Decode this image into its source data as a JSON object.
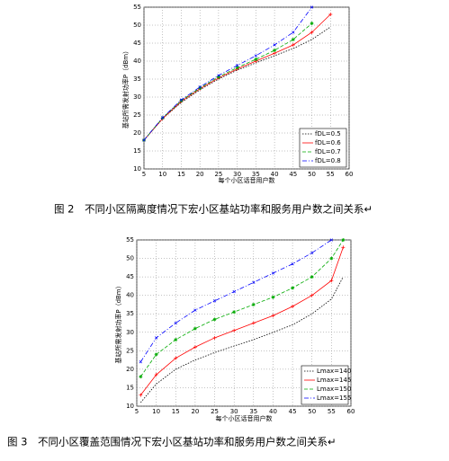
{
  "chart_data": [
    {
      "type": "line",
      "caption": "图 2　不同小区隔离度情况下宏小区基站功率和服务用户数之间关系↵",
      "xlabel": "每个小区话音用户数",
      "ylabel": "基站所需发射功率P（dBm）",
      "x": [
        5,
        10,
        15,
        20,
        25,
        30,
        35,
        40,
        45,
        50,
        55
      ],
      "xlim": [
        5,
        60
      ],
      "xticks": [
        5,
        10,
        15,
        20,
        25,
        30,
        35,
        40,
        45,
        50,
        55,
        60
      ],
      "ylim": [
        10,
        55
      ],
      "yticks": [
        10,
        15,
        20,
        25,
        30,
        35,
        40,
        45,
        50,
        55
      ],
      "grid": true,
      "legend": "lower right",
      "series": [
        {
          "name": "fDL=0.5",
          "color": "#000000",
          "values": [
            18,
            24,
            28.5,
            32,
            35,
            37.5,
            39.5,
            41.5,
            43.5,
            46,
            49.5
          ]
        },
        {
          "name": "fDL=0.6",
          "color": "#ff0000",
          "values": [
            18,
            24,
            28.8,
            32.3,
            35.3,
            37.8,
            40,
            42.2,
            44.5,
            48,
            53
          ]
        },
        {
          "name": "fDL=0.7",
          "color": "#00aa00",
          "values": [
            18,
            24.2,
            29,
            32.5,
            35.6,
            38.2,
            40.5,
            43,
            46,
            50.5,
            null
          ]
        },
        {
          "name": "fDL=0.8",
          "color": "#0000ff",
          "values": [
            18,
            24.3,
            29.2,
            32.8,
            36,
            38.8,
            41.5,
            44.5,
            48,
            55,
            null
          ]
        }
      ]
    },
    {
      "type": "line",
      "caption": "图 3　不同小区覆盖范围情况下宏小区基站功率和服务用户数之间关系↵",
      "xlabel": "每个小区话音用户数",
      "ylabel": "基站所需发射功率P（dBm）",
      "x": [
        6,
        10,
        15,
        20,
        25,
        30,
        35,
        40,
        45,
        50,
        55,
        58
      ],
      "xlim": [
        5,
        60
      ],
      "xticks": [
        5,
        10,
        15,
        20,
        25,
        30,
        35,
        40,
        45,
        50,
        55,
        60
      ],
      "ylim": [
        10,
        55
      ],
      "yticks": [
        10,
        15,
        20,
        25,
        30,
        35,
        40,
        45,
        50,
        55
      ],
      "grid": true,
      "legend": "lower right",
      "series": [
        {
          "name": "Lmax=140",
          "color": "#000000",
          "values": [
            11,
            16,
            20,
            22.5,
            24.5,
            26.3,
            28,
            30,
            32,
            35,
            39,
            45
          ]
        },
        {
          "name": "Lmax=145",
          "color": "#ff0000",
          "values": [
            13,
            18.5,
            23,
            26,
            28.5,
            30.5,
            32.5,
            34.5,
            37,
            40,
            44,
            53
          ]
        },
        {
          "name": "Lmax=150",
          "color": "#00aa00",
          "values": [
            18,
            24,
            28,
            31,
            33.5,
            35.5,
            37.5,
            39.5,
            42,
            45,
            50,
            55
          ]
        },
        {
          "name": "Lmax=155",
          "color": "#0000ff",
          "values": [
            22,
            28.5,
            32.5,
            36,
            38.5,
            41,
            43.5,
            46,
            48.5,
            51.5,
            55,
            null
          ]
        }
      ]
    }
  ]
}
